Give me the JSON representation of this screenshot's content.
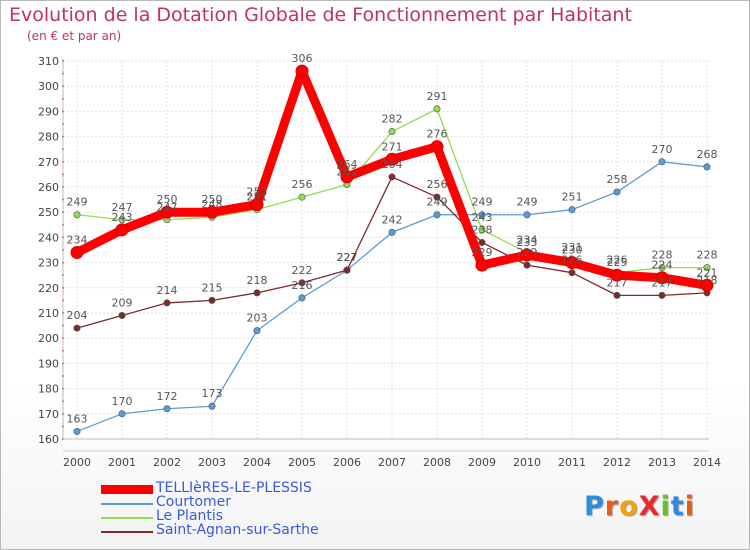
{
  "title": "Evolution de la Dotation Globale de Fonctionnement par Habitant",
  "subtitle": "(en € et par an)",
  "logo": {
    "text": "ProXiti",
    "letters": [
      "P",
      "r",
      "o",
      "X",
      "i",
      "t",
      "i"
    ],
    "colors": [
      "#2e8be0",
      "#e85b1e",
      "#f2a20f",
      "#e82a2a",
      "#6cbf2a",
      "#2e8be0",
      "#e85b1e"
    ]
  },
  "chart_data": {
    "type": "line",
    "title": "Evolution de la Dotation Globale de Fonctionnement par Habitant",
    "subtitle": "(en € et par an)",
    "xlabel": "",
    "ylabel": "",
    "ylim": [
      160,
      310
    ],
    "yticks": [
      160,
      170,
      180,
      190,
      200,
      210,
      220,
      230,
      240,
      250,
      260,
      270,
      280,
      290,
      300,
      310
    ],
    "x": [
      "2000",
      "2001",
      "2002",
      "2003",
      "2004",
      "2005",
      "2006",
      "2007",
      "2008",
      "2009",
      "2010",
      "2011",
      "2012",
      "2013",
      "2014"
    ],
    "grid": true,
    "legend_position": "bottom-left",
    "series": [
      {
        "name": "TELLIèRES-LE-PLESSIS",
        "color": "#ff0000",
        "thick": true,
        "values": [
          234,
          243,
          250,
          250,
          253,
          306,
          264,
          271,
          276,
          229,
          233,
          230,
          225,
          224,
          221
        ]
      },
      {
        "name": "Courtomer",
        "color": "#5b9bd5",
        "thick": false,
        "values": [
          163,
          170,
          172,
          173,
          203,
          216,
          227,
          242,
          249,
          249,
          249,
          251,
          258,
          270,
          268
        ]
      },
      {
        "name": "Le Plantis",
        "color": "#8fdc55",
        "thick": false,
        "values": [
          249,
          247,
          247,
          248,
          251,
          256,
          261,
          282,
          291,
          243,
          234,
          231,
          226,
          228,
          228
        ]
      },
      {
        "name": "Saint-Agnan-sur-Sarthe",
        "color": "#7b2b2b",
        "thick": false,
        "values": [
          204,
          209,
          214,
          215,
          218,
          222,
          227,
          264,
          256,
          238,
          229,
          226,
          217,
          217,
          218
        ]
      }
    ]
  }
}
